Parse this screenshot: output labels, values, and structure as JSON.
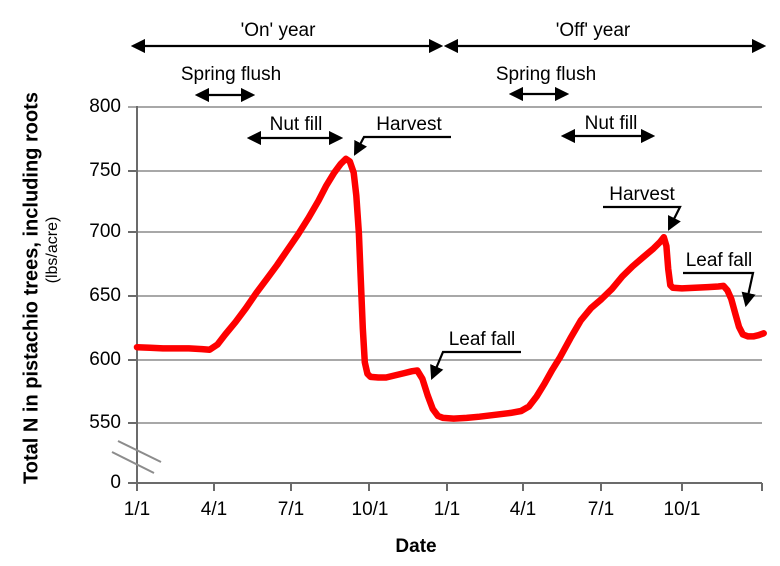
{
  "figure": {
    "y_axis_title": "Total N in pistachio trees, including roots",
    "y_axis_units": "(lbs/acre)",
    "x_axis_title": "Date",
    "y_ticks": [
      "800",
      "750",
      "700",
      "650",
      "600",
      "550",
      "0"
    ],
    "x_ticks": [
      "1/1",
      "4/1",
      "7/1",
      "10/1",
      "1/1",
      "4/1",
      "7/1",
      "10/1"
    ],
    "annotations": {
      "on_year": "'On' year",
      "off_year": "'Off' year",
      "spring_flush_on": "Spring flush",
      "nut_fill_on": "Nut fill",
      "harvest_on": "Harvest",
      "leaf_fall_on": "Leaf fall",
      "spring_flush_off": "Spring flush",
      "nut_fill_off": "Nut fill",
      "harvest_off": "Harvest",
      "leaf_fall_off": "Leaf fall"
    },
    "colors": {
      "line": "#FE0000",
      "grid": "#8C8C8C",
      "axis": "#6B6B6B",
      "text": "#000000",
      "background": "#FFFFFF"
    }
  },
  "chart_data": {
    "type": "line",
    "title": "",
    "xlabel": "Date",
    "ylabel": "Total N in pistachio trees, including roots (lbs/acre)",
    "x_unit": "months since Jan 1 of the 'On' year (0 = 1/1, 24 = 1/1 two years later)",
    "x_tick_months": [
      0,
      3,
      6,
      9,
      12,
      15,
      18,
      21
    ],
    "x_tick_labels": [
      "1/1",
      "4/1",
      "7/1",
      "10/1",
      "1/1",
      "4/1",
      "7/1",
      "10/1"
    ],
    "ylim_shown": [
      550,
      800
    ],
    "y_axis_break": "axis broken between 0 and 550",
    "grid": "horizontal gridlines every 50 from 550 to 800",
    "legend": "none",
    "series": [
      {
        "name": "Total N in pistachio trees",
        "color": "#FE0000",
        "points_month_value": [
          [
            0,
            610
          ],
          [
            0.5,
            609.5
          ],
          [
            1,
            609
          ],
          [
            1.5,
            609
          ],
          [
            2,
            609
          ],
          [
            2.5,
            608.5
          ],
          [
            2.8,
            608
          ],
          [
            3.1,
            612
          ],
          [
            3.4,
            620
          ],
          [
            3.8,
            630
          ],
          [
            4.2,
            641
          ],
          [
            4.6,
            653
          ],
          [
            5.0,
            664
          ],
          [
            5.4,
            675
          ],
          [
            5.8,
            687
          ],
          [
            6.2,
            699
          ],
          [
            6.6,
            712
          ],
          [
            7.0,
            726
          ],
          [
            7.3,
            738
          ],
          [
            7.6,
            748
          ],
          [
            7.85,
            755
          ],
          [
            8.05,
            759
          ],
          [
            8.2,
            757
          ],
          [
            8.35,
            748
          ],
          [
            8.45,
            730
          ],
          [
            8.55,
            700
          ],
          [
            8.62,
            665
          ],
          [
            8.7,
            625
          ],
          [
            8.78,
            598
          ],
          [
            8.88,
            589
          ],
          [
            9.0,
            586.5
          ],
          [
            9.3,
            586
          ],
          [
            9.6,
            586
          ],
          [
            9.9,
            587.5
          ],
          [
            10.3,
            589.5
          ],
          [
            10.6,
            591
          ],
          [
            10.8,
            591.5
          ],
          [
            11.0,
            585
          ],
          [
            11.2,
            572
          ],
          [
            11.4,
            561
          ],
          [
            11.6,
            555.5
          ],
          [
            11.8,
            554
          ],
          [
            12.2,
            553.5
          ],
          [
            12.7,
            554
          ],
          [
            13.2,
            555
          ],
          [
            13.8,
            556.5
          ],
          [
            14.4,
            558
          ],
          [
            14.8,
            559.5
          ],
          [
            15.1,
            563
          ],
          [
            15.4,
            571
          ],
          [
            15.7,
            581
          ],
          [
            16.0,
            592
          ],
          [
            16.3,
            602
          ],
          [
            16.7,
            617
          ],
          [
            17.1,
            631
          ],
          [
            17.5,
            641
          ],
          [
            17.9,
            648
          ],
          [
            18.3,
            656
          ],
          [
            18.7,
            666
          ],
          [
            19.1,
            674
          ],
          [
            19.5,
            681
          ],
          [
            19.9,
            688
          ],
          [
            20.15,
            693
          ],
          [
            20.3,
            697
          ],
          [
            20.4,
            690
          ],
          [
            20.47,
            672
          ],
          [
            20.55,
            659
          ],
          [
            20.65,
            657
          ],
          [
            21.0,
            656.5
          ],
          [
            21.5,
            657
          ],
          [
            22.0,
            657.5
          ],
          [
            22.4,
            658
          ],
          [
            22.6,
            658.5
          ],
          [
            22.75,
            655
          ],
          [
            22.9,
            648
          ],
          [
            23.05,
            637
          ],
          [
            23.2,
            626
          ],
          [
            23.35,
            620
          ],
          [
            23.55,
            618.5
          ],
          [
            23.75,
            618.5
          ],
          [
            23.95,
            619.5
          ],
          [
            24.15,
            621
          ]
        ]
      }
    ],
    "annotations": [
      {
        "label": "'On' year",
        "type": "double_arrow_span",
        "months": [
          0,
          11.8
        ]
      },
      {
        "label": "'Off' year",
        "type": "double_arrow_span",
        "months": [
          11.9,
          24.2
        ]
      },
      {
        "label": "Spring flush",
        "year": "on",
        "type": "double_arrow_span",
        "months": [
          2.3,
          4.5
        ]
      },
      {
        "label": "Nut fill",
        "year": "on",
        "type": "double_arrow_span",
        "months": [
          4.3,
          7.9
        ]
      },
      {
        "label": "Harvest",
        "year": "on",
        "type": "arrow_to_point",
        "month": 8.4,
        "value": 757
      },
      {
        "label": "Leaf fall",
        "year": "on",
        "type": "arrow_to_point",
        "month": 11.4,
        "value": 565
      },
      {
        "label": "Spring flush",
        "year": "off",
        "type": "double_arrow_span",
        "months": [
          14.4,
          16.6
        ]
      },
      {
        "label": "Nut fill",
        "year": "off",
        "type": "double_arrow_span",
        "months": [
          16.4,
          19.9
        ]
      },
      {
        "label": "Harvest",
        "year": "off",
        "type": "arrow_to_point",
        "month": 20.5,
        "value": 695
      },
      {
        "label": "Leaf fall",
        "year": "off",
        "type": "arrow_to_point",
        "month": 23.5,
        "value": 625
      }
    ]
  }
}
